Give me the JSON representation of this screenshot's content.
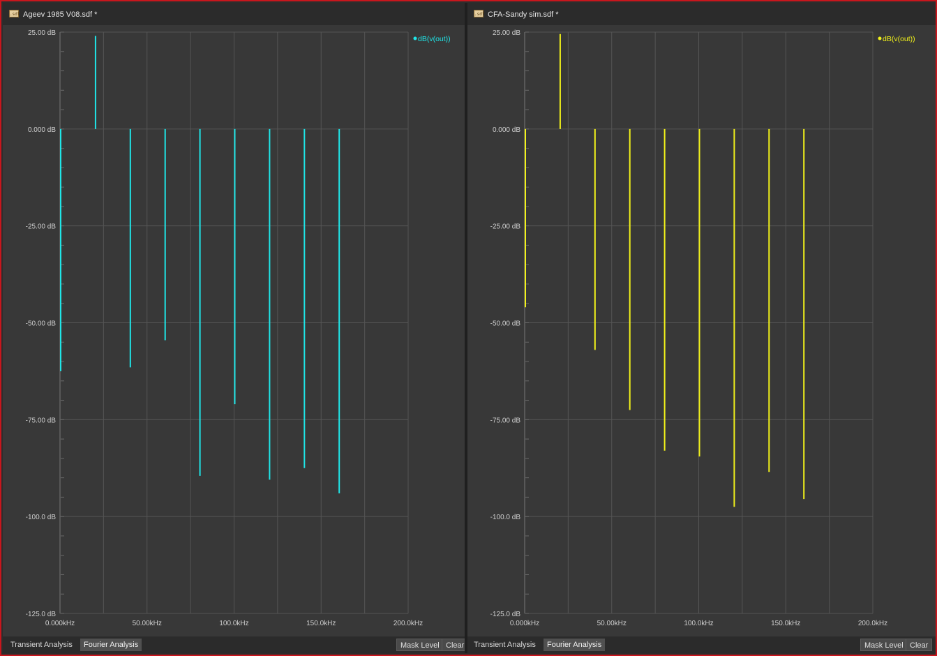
{
  "colors": {
    "frame_border": "#c8161d",
    "plot_bg": "#383838",
    "grid": "#555555",
    "axis_text": "#cfcfcf",
    "series_left": "#1fe6e8",
    "series_right": "#f2f21a"
  },
  "icons": {
    "document": "document-sdf-icon"
  },
  "panes": [
    {
      "title": "Ageev 1985 V08.sdf *",
      "tabs": [
        "Transient Analysis",
        "Fourier Analysis"
      ],
      "active_tab": 1,
      "buttons": {
        "mask_level": "Mask Level",
        "clear": "Clear"
      }
    },
    {
      "title": "CFA-Sandy sim.sdf *",
      "tabs": [
        "Transient Analysis",
        "Fourier Analysis"
      ],
      "active_tab": 1,
      "buttons": {
        "mask_level": "Mask Level",
        "clear": "Clear"
      }
    }
  ],
  "chart_data": [
    {
      "type": "bar",
      "title": "",
      "xlabel": "",
      "ylabel": "",
      "x_unit": "kHz",
      "y_unit": "dB",
      "xlim": [
        0,
        200
      ],
      "ylim": [
        -125,
        25
      ],
      "x_ticks": [
        "0.000kHz",
        "50.00kHz",
        "100.0kHz",
        "150.0kHz",
        "200.0kHz"
      ],
      "y_ticks": [
        "25.00 dB",
        "0.000 dB",
        "-25.00 dB",
        "-50.00 dB",
        "-75.00 dB",
        "-100.0 dB",
        "-125.0 dB"
      ],
      "legend_position": "top-right",
      "series": [
        {
          "name": "dB(v(out))",
          "color": "#1fe6e8",
          "x": [
            0,
            20,
            40,
            60,
            80,
            100,
            120,
            140,
            160
          ],
          "values": [
            -62.5,
            24,
            -61.5,
            -54.5,
            -89.5,
            -71,
            -90.5,
            -87.5,
            -94
          ]
        }
      ],
      "grid": true
    },
    {
      "type": "bar",
      "title": "",
      "xlabel": "",
      "ylabel": "",
      "x_unit": "kHz",
      "y_unit": "dB",
      "xlim": [
        0,
        200
      ],
      "ylim": [
        -125,
        25
      ],
      "x_ticks": [
        "0.000kHz",
        "50.00kHz",
        "100.0kHz",
        "150.0kHz",
        "200.0kHz"
      ],
      "y_ticks": [
        "25.00 dB",
        "0.000 dB",
        "-25.00 dB",
        "-50.00 dB",
        "-75.00 dB",
        "-100.0 dB",
        "-125.0 dB"
      ],
      "legend_position": "top-right",
      "series": [
        {
          "name": "dB(v(out))",
          "color": "#f2f21a",
          "x": [
            0,
            20,
            40,
            60,
            80,
            100,
            120,
            140,
            160
          ],
          "values": [
            -46,
            24.5,
            -57,
            -72.5,
            -83,
            -84.5,
            -97.5,
            -88.5,
            -95.5
          ]
        }
      ],
      "grid": true
    }
  ]
}
